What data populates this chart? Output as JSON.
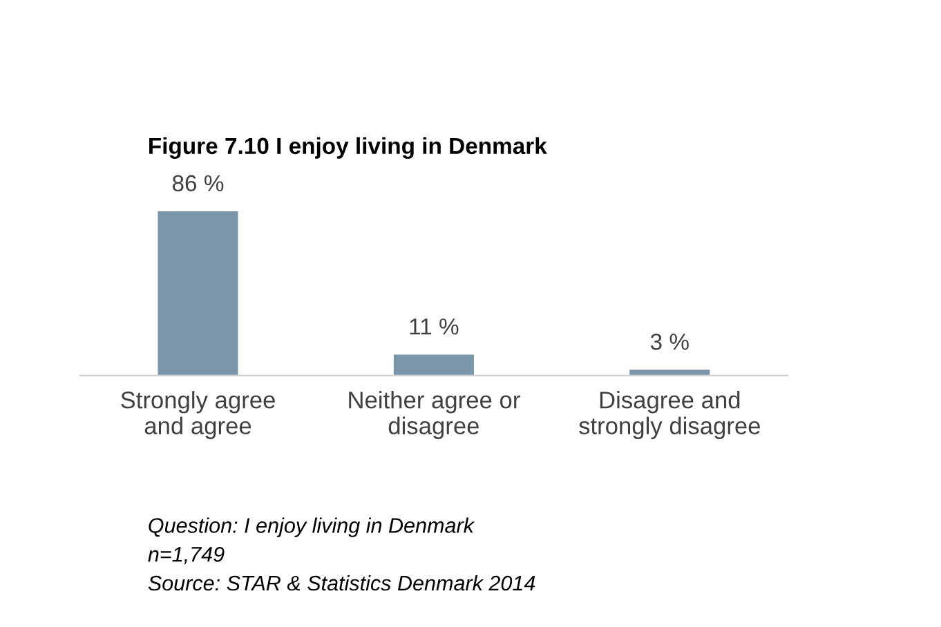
{
  "chart_data": {
    "type": "bar",
    "title": "Figure 7.10 I enjoy living in Denmark",
    "categories": [
      "Strongly agree\nand agree",
      "Neither agree or\ndisagree",
      "Disagree and\nstrongly disagree"
    ],
    "values": [
      86,
      11,
      3
    ],
    "value_labels": [
      "86 %",
      "11 %",
      "3 %"
    ],
    "color": "#7b96a8",
    "grid": false,
    "annotations": [
      "Question: I enjoy living in Denmark",
      "n=1,749",
      "Source: STAR & Statistics Denmark 2014"
    ]
  }
}
